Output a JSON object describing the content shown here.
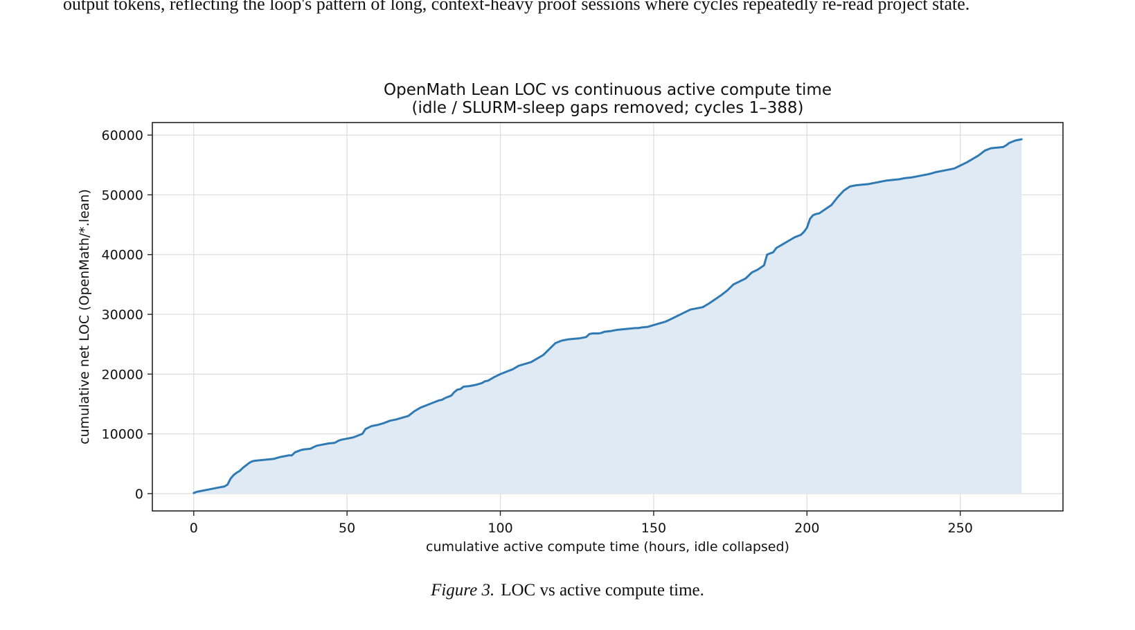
{
  "page": {
    "body_text": "output tokens, reflecting the loop's pattern of long, context-heavy proof sessions where cycles repeatedly re-read project state.",
    "caption_label": "Figure 3.",
    "caption_text": "LOC vs active compute time."
  },
  "chart_data": {
    "type": "area",
    "title": "OpenMath Lean LOC vs continuous active compute time",
    "subtitle": "(idle / SLURM-sleep gaps removed; cycles 1–388)",
    "xlabel": "cumulative active compute time (hours, idle collapsed)",
    "ylabel": "cumulative net LOC (OpenMath/*.lean)",
    "xlim": [
      -13.5,
      283.5
    ],
    "ylim": [
      -2900,
      62100
    ],
    "x_ticks": [
      0,
      50,
      100,
      150,
      200,
      250
    ],
    "y_ticks": [
      0,
      10000,
      20000,
      30000,
      40000,
      50000,
      60000
    ],
    "x_tick_labels": [
      "0",
      "50",
      "100",
      "150",
      "200",
      "250"
    ],
    "y_tick_labels": [
      "0",
      "10000",
      "20000",
      "30000",
      "40000",
      "50000",
      "60000"
    ],
    "grid": true,
    "line_color": "#2f7ab3",
    "fill_color": "#dfeaf5",
    "series": [
      {
        "x": [
          0,
          1,
          3,
          5,
          7,
          8,
          9,
          10,
          11,
          12,
          13,
          14,
          15,
          16,
          17,
          18,
          19,
          20,
          22,
          24,
          26,
          28,
          30,
          31,
          32,
          33,
          34,
          35,
          36,
          38,
          40,
          41,
          42,
          44,
          46,
          47,
          48,
          50,
          52,
          53,
          54,
          55,
          56,
          58,
          60,
          62,
          64,
          66,
          68,
          70,
          72,
          74,
          76,
          78,
          80,
          81,
          82,
          84,
          85,
          86,
          87,
          88,
          90,
          92,
          94,
          95,
          96,
          98,
          100,
          102,
          104,
          106,
          108,
          110,
          112,
          114,
          116,
          118,
          119,
          120,
          122,
          124,
          126,
          128,
          129,
          130,
          132,
          133,
          134,
          136,
          138,
          140,
          142,
          144,
          145,
          146,
          148,
          150,
          152,
          154,
          156,
          158,
          160,
          162,
          164,
          166,
          168,
          170,
          172,
          174,
          176,
          178,
          180,
          182,
          184,
          186,
          187,
          188,
          189,
          190,
          192,
          194,
          196,
          198,
          199,
          200,
          201,
          202,
          203,
          204,
          206,
          208,
          210,
          212,
          214,
          216,
          218,
          220,
          222,
          224,
          226,
          228,
          230,
          232,
          234,
          236,
          238,
          240,
          242,
          244,
          246,
          248,
          250,
          252,
          254,
          256,
          258,
          260,
          262,
          264,
          265,
          266,
          268,
          269,
          270
        ],
        "y": [
          100,
          300,
          500,
          700,
          900,
          1000,
          1100,
          1200,
          1500,
          2500,
          3100,
          3500,
          3800,
          4300,
          4700,
          5100,
          5400,
          5500,
          5600,
          5700,
          5800,
          6100,
          6300,
          6400,
          6400,
          6900,
          7100,
          7300,
          7400,
          7500,
          8000,
          8100,
          8200,
          8400,
          8500,
          8800,
          9000,
          9200,
          9400,
          9600,
          9800,
          10000,
          10800,
          11300,
          11500,
          11800,
          12200,
          12400,
          12700,
          13000,
          13800,
          14400,
          14800,
          15200,
          15600,
          15700,
          16000,
          16400,
          17000,
          17400,
          17500,
          17900,
          18000,
          18200,
          18500,
          18800,
          18900,
          19500,
          20000,
          20400,
          20800,
          21400,
          21700,
          22000,
          22600,
          23200,
          24200,
          25200,
          25400,
          25600,
          25800,
          25900,
          26000,
          26200,
          26700,
          26800,
          26800,
          26900,
          27100,
          27200,
          27400,
          27500,
          27600,
          27700,
          27700,
          27800,
          27900,
          28200,
          28500,
          28800,
          29300,
          29800,
          30300,
          30800,
          31000,
          31200,
          31800,
          32500,
          33200,
          34000,
          35000,
          35500,
          36000,
          37000,
          37500,
          38200,
          40000,
          40200,
          40400,
          41100,
          41700,
          42300,
          42900,
          43300,
          43800,
          44500,
          46000,
          46600,
          46800,
          46900,
          47600,
          48300,
          49600,
          50700,
          51400,
          51600,
          51700,
          51800,
          52000,
          52200,
          52400,
          52500,
          52600,
          52800,
          52900,
          53100,
          53300,
          53500,
          53800,
          54000,
          54200,
          54400,
          54900,
          55400,
          56000,
          56600,
          57400,
          57800,
          57900,
          58000,
          58300,
          58700,
          59100,
          59200,
          59300
        ]
      }
    ]
  }
}
